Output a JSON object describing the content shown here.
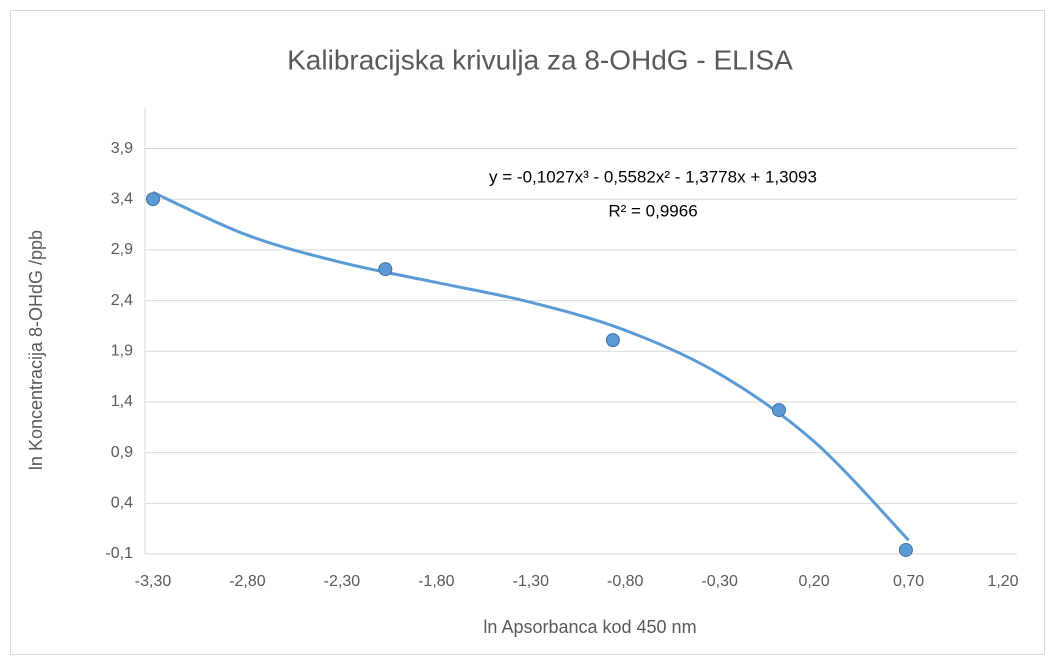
{
  "chart_data": {
    "type": "scatter",
    "title": "Kalibracijska krivulja za 8-OHdG - ELISA",
    "x_label": "ln Apsorbanca kod 450 nm",
    "y_label": "ln Koncentracija 8-OHdG /ppb",
    "equation": "y = -0,1027x³ - 0,5582x² - 1,3778x + 1,3093",
    "r_squared": "R² = 0,9966",
    "color": "#5b9bd5",
    "x": [
      -3.3,
      -2.07,
      -0.865,
      0.014,
      0.686
    ],
    "values": [
      3.4,
      2.71,
      2.01,
      1.32,
      -0.06
    ],
    "trendline": {
      "x": [
        -3.3,
        -2.8,
        -2.3,
        -1.8,
        -1.3,
        -0.8,
        -0.3,
        0.2,
        0.7
      ],
      "values": [
        3.468,
        3.045,
        2.775,
        2.579,
        2.383,
        2.107,
        1.675,
        1.01,
        0.036
      ]
    },
    "xlim": [
      -3.3,
      1.2
    ],
    "xticks": [
      {
        "value": -3.3,
        "label": "-3,30"
      },
      {
        "value": -2.8,
        "label": "-2,80"
      },
      {
        "value": -2.3,
        "label": "-2,30"
      },
      {
        "value": -1.8,
        "label": "-1,80"
      },
      {
        "value": -1.3,
        "label": "-1,30"
      },
      {
        "value": -0.8,
        "label": "-0,80"
      },
      {
        "value": -0.3,
        "label": "-0,30"
      },
      {
        "value": 0.2,
        "label": "0,20"
      },
      {
        "value": 0.7,
        "label": "0,70"
      },
      {
        "value": 1.2,
        "label": "1,20"
      }
    ],
    "ylim": [
      -0.1,
      4.3
    ],
    "yticks": [
      {
        "value": -0.1,
        "label": "-0,1"
      },
      {
        "value": 0.4,
        "label": "0,4"
      },
      {
        "value": 0.9,
        "label": "0,9"
      },
      {
        "value": 1.4,
        "label": "1,4"
      },
      {
        "value": 1.9,
        "label": "1,9"
      },
      {
        "value": 2.4,
        "label": "2,4"
      },
      {
        "value": 2.9,
        "label": "2,9"
      },
      {
        "value": 3.4,
        "label": "3,4"
      },
      {
        "value": 3.9,
        "label": "3,9"
      }
    ],
    "grid": true
  }
}
